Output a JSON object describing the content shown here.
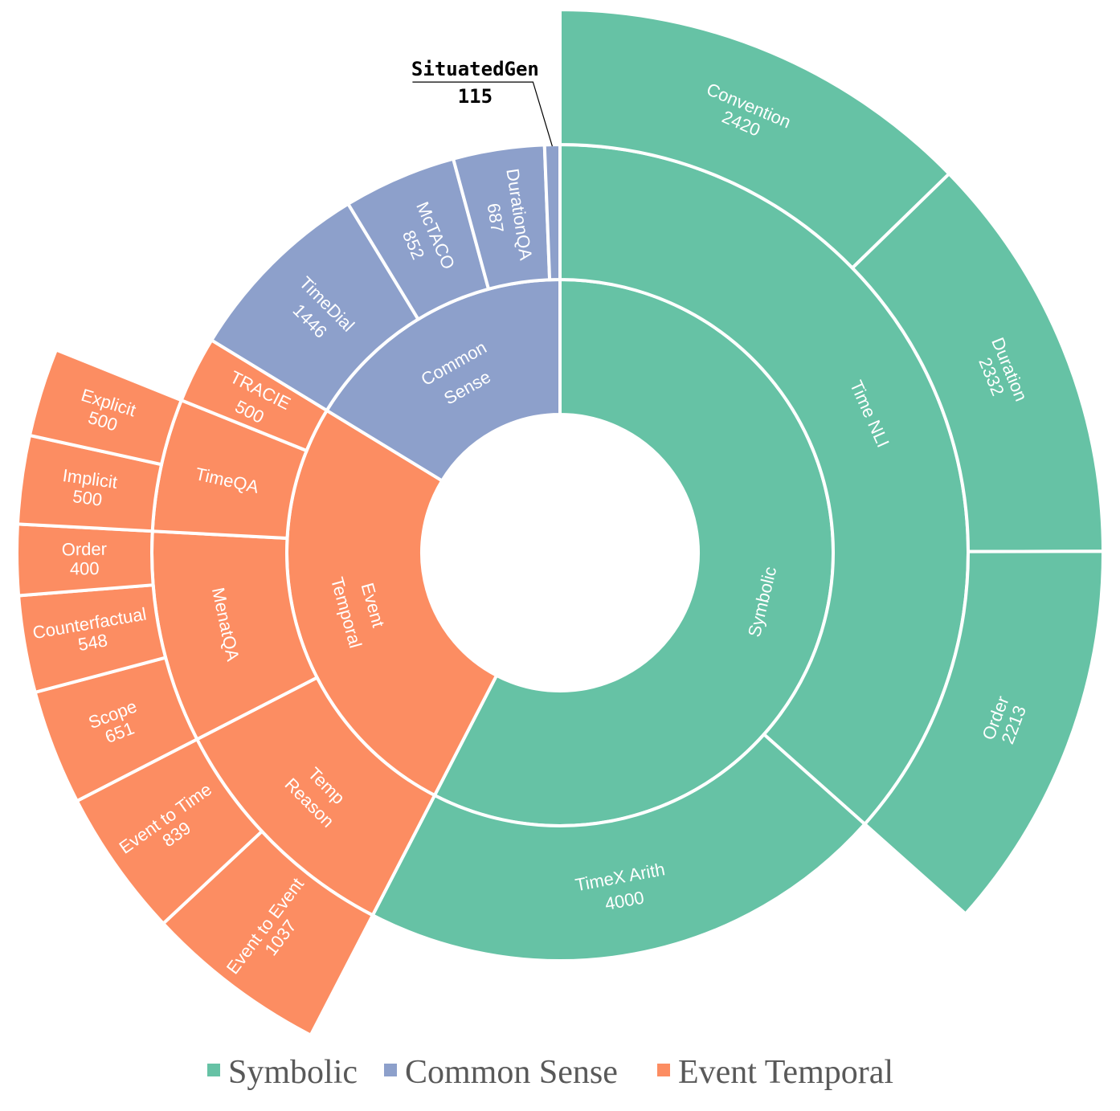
{
  "chart_data": {
    "type": "sunburst",
    "colors": {
      "Symbolic": "#66c2a5",
      "Common Sense": "#8da0cb",
      "Event Temporal": "#fc8d62"
    },
    "legend": {
      "position": "bottom",
      "entries": [
        "Symbolic",
        "Common Sense",
        "Event Temporal"
      ]
    },
    "categories": [
      {
        "name": "Symbolic",
        "label_lines": [
          "Symbolic"
        ],
        "children": [
          {
            "name": "Time NLI",
            "label_lines": [
              "Time NLI"
            ],
            "children": [
              {
                "name": "Convention",
                "value": 2420,
                "label_lines": [
                  "Convention",
                  "2420"
                ]
              },
              {
                "name": "Duration",
                "value": 2332,
                "label_lines": [
                  "Duration",
                  "2332"
                ]
              },
              {
                "name": "Order",
                "value": 2213,
                "label_lines": [
                  "Order",
                  "2213"
                ]
              }
            ]
          },
          {
            "name": "TimeX Arith",
            "value": 4000,
            "label_lines": [
              "TimeX Arith",
              "4000"
            ]
          }
        ]
      },
      {
        "name": "Event Temporal",
        "label_lines": [
          "Event",
          "Temporal"
        ],
        "children": [
          {
            "name": "Temp Reason",
            "label_lines": [
              "Temp",
              "Reason"
            ],
            "children": [
              {
                "name": "Event to Event",
                "value": 1037,
                "label_lines": [
                  "Event to Event",
                  "1037"
                ]
              },
              {
                "name": "Event to Time",
                "value": 839,
                "label_lines": [
                  "Event to Time",
                  "839"
                ]
              }
            ]
          },
          {
            "name": "MenatQA",
            "label_lines": [
              "MenatQA"
            ],
            "children": [
              {
                "name": "Scope",
                "value": 651,
                "label_lines": [
                  "Scope",
                  "651"
                ]
              },
              {
                "name": "Counterfactual",
                "value": 548,
                "label_lines": [
                  "Counterfactual",
                  "548"
                ]
              },
              {
                "name": "Order",
                "value": 400,
                "label_lines": [
                  "Order",
                  "400"
                ]
              }
            ]
          },
          {
            "name": "TimeQA",
            "label_lines": [
              "TimeQA"
            ],
            "children": [
              {
                "name": "Implicit",
                "value": 500,
                "label_lines": [
                  "Implicit",
                  "500"
                ]
              },
              {
                "name": "Explicit",
                "value": 500,
                "label_lines": [
                  "Explicit",
                  "500"
                ]
              }
            ]
          },
          {
            "name": "TRACIE",
            "value": 500,
            "label_lines": [
              "TRACIE",
              "500"
            ]
          }
        ]
      },
      {
        "name": "Common Sense",
        "label_lines": [
          "Common",
          "Sense"
        ],
        "children": [
          {
            "name": "TimeDial",
            "value": 1446,
            "label_lines": [
              "TimeDial",
              "1446"
            ]
          },
          {
            "name": "McTACO",
            "value": 852,
            "label_lines": [
              "McTACO",
              "852"
            ]
          },
          {
            "name": "DurationQA",
            "value": 687,
            "label_lines": [
              "DurationQA",
              "687"
            ]
          },
          {
            "name": "SituatedGen",
            "value": 115,
            "label_lines": [
              "SituatedGen",
              "115"
            ],
            "callout": true
          }
        ]
      }
    ]
  }
}
